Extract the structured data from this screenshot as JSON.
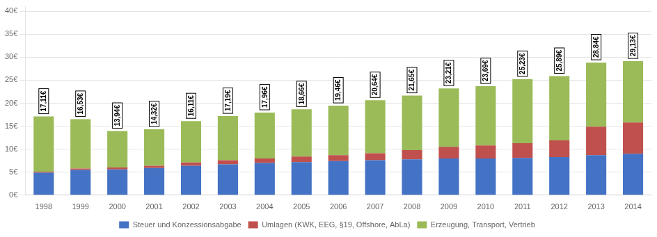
{
  "chart_data": {
    "type": "bar",
    "stacked": true,
    "categories": [
      "1998",
      "1999",
      "2000",
      "2001",
      "2002",
      "2003",
      "2004",
      "2005",
      "2006",
      "2007",
      "2008",
      "2009",
      "2010",
      "2011",
      "2012",
      "2013",
      "2014"
    ],
    "series": [
      {
        "name": "Steuer und Konzessionsabgabe",
        "color": "#4472C4",
        "values": [
          4.9,
          5.5,
          5.6,
          5.9,
          6.4,
          6.7,
          7.0,
          7.2,
          7.4,
          7.6,
          7.8,
          8.0,
          8.0,
          8.1,
          8.3,
          8.7,
          9.0
        ]
      },
      {
        "name": "Umlagen (KWK, EEG, §19, Offshore, AbLa)",
        "color": "#C0504D",
        "values": [
          0.2,
          0.3,
          0.4,
          0.5,
          0.7,
          0.9,
          1.0,
          1.2,
          1.3,
          1.5,
          2.0,
          2.5,
          2.8,
          3.2,
          3.6,
          6.2,
          6.8
        ]
      },
      {
        "name": "Erzeugung, Transport, Vertrieb",
        "color": "#9BBB59",
        "values": [
          12.01,
          10.73,
          7.94,
          7.92,
          9.01,
          9.59,
          9.96,
          10.26,
          10.76,
          11.54,
          11.85,
          12.71,
          12.89,
          13.93,
          13.99,
          13.94,
          13.33
        ]
      }
    ],
    "totals": [
      17.11,
      16.53,
      13.94,
      14.32,
      16.11,
      17.19,
      17.96,
      18.66,
      19.46,
      20.64,
      21.65,
      23.21,
      23.69,
      25.23,
      25.89,
      28.84,
      29.13
    ],
    "total_labels": [
      "17,11€",
      "16,53€",
      "13,94€",
      "14,32€",
      "16,11€",
      "17,19€",
      "17,96€",
      "18,66€",
      "19,46€",
      "20,64€",
      "21,65€",
      "23,21€",
      "23,69€",
      "25,23€",
      "25,89€",
      "28,84€",
      "29,13€"
    ],
    "ylim": [
      0,
      41
    ],
    "yticks": [
      {
        "value": 0,
        "label": "0€"
      },
      {
        "value": 5,
        "label": "5€"
      },
      {
        "value": 10,
        "label": "10€"
      },
      {
        "value": 15,
        "label": "15€"
      },
      {
        "value": 20,
        "label": "20€"
      },
      {
        "value": 25,
        "label": "25€"
      },
      {
        "value": 30,
        "label": "30€"
      },
      {
        "value": 35,
        "label": "35€"
      },
      {
        "value": 40,
        "label": "40€"
      }
    ],
    "grid": true,
    "legend": "bottom"
  }
}
